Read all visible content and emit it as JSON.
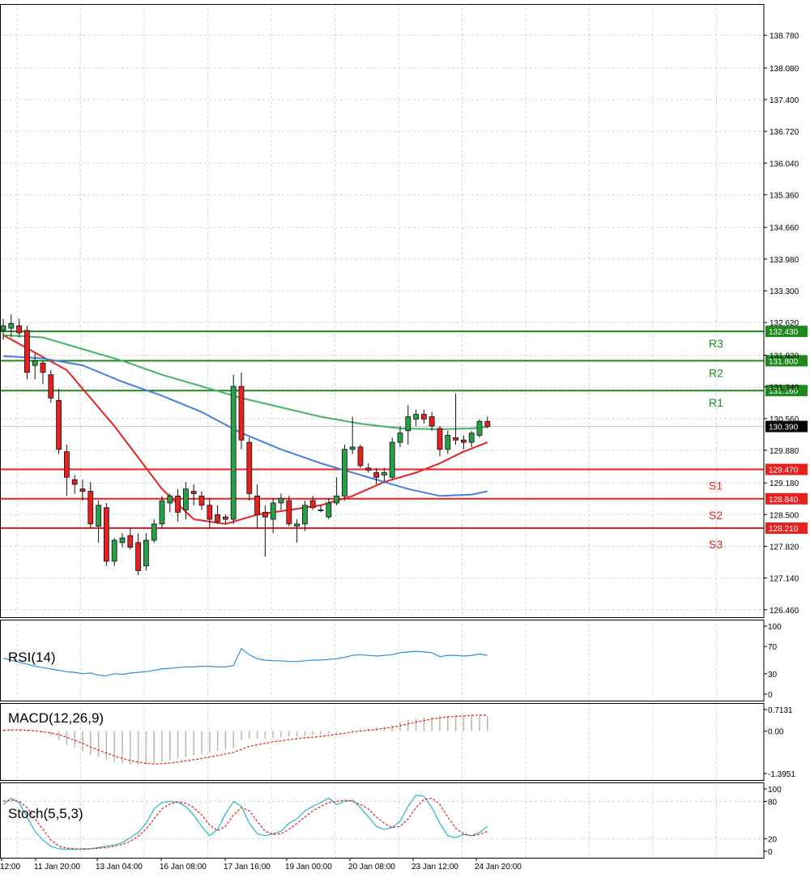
{
  "chart_data": {
    "type": "candlestick",
    "main_panel": {
      "price_axis_ticks": [
        "138.780",
        "138.080",
        "137.400",
        "136.720",
        "136.040",
        "135.360",
        "134.660",
        "133.980",
        "133.300",
        "132.620",
        "131.920",
        "131.240",
        "130.560",
        "129.880",
        "129.180",
        "128.500",
        "127.820",
        "127.140",
        "126.460"
      ],
      "ylim": [
        126.3,
        139.45
      ],
      "current_price": "130.390",
      "candles": [
        {
          "o": 132.45,
          "h": 132.7,
          "l": 132.25,
          "c": 132.55
        },
        {
          "o": 132.5,
          "h": 132.8,
          "l": 132.3,
          "c": 132.6
        },
        {
          "o": 132.55,
          "h": 132.7,
          "l": 132.3,
          "c": 132.4
        },
        {
          "o": 132.45,
          "h": 132.55,
          "l": 131.4,
          "c": 131.55
        },
        {
          "o": 131.7,
          "h": 131.95,
          "l": 131.4,
          "c": 131.8
        },
        {
          "o": 131.75,
          "h": 131.8,
          "l": 131.3,
          "c": 131.55
        },
        {
          "o": 131.5,
          "h": 131.6,
          "l": 130.9,
          "c": 131.0
        },
        {
          "o": 130.95,
          "h": 131.2,
          "l": 129.8,
          "c": 129.9
        },
        {
          "o": 129.85,
          "h": 130.0,
          "l": 128.9,
          "c": 129.3
        },
        {
          "o": 129.25,
          "h": 129.35,
          "l": 128.95,
          "c": 129.15
        },
        {
          "o": 129.05,
          "h": 129.25,
          "l": 128.8,
          "c": 129.0
        },
        {
          "o": 129.0,
          "h": 129.2,
          "l": 128.2,
          "c": 128.3
        },
        {
          "o": 128.25,
          "h": 128.8,
          "l": 127.9,
          "c": 128.7
        },
        {
          "o": 128.65,
          "h": 128.75,
          "l": 127.4,
          "c": 127.5
        },
        {
          "o": 127.5,
          "h": 128.0,
          "l": 127.4,
          "c": 127.95
        },
        {
          "o": 127.9,
          "h": 128.1,
          "l": 127.8,
          "c": 128.0
        },
        {
          "o": 128.05,
          "h": 128.2,
          "l": 127.75,
          "c": 127.8
        },
        {
          "o": 127.9,
          "h": 128.1,
          "l": 127.2,
          "c": 127.3
        },
        {
          "o": 127.4,
          "h": 128.1,
          "l": 127.3,
          "c": 127.95
        },
        {
          "o": 127.95,
          "h": 128.4,
          "l": 127.9,
          "c": 128.3
        },
        {
          "o": 128.3,
          "h": 128.9,
          "l": 128.2,
          "c": 128.8
        },
        {
          "o": 128.75,
          "h": 128.95,
          "l": 128.55,
          "c": 128.9
        },
        {
          "o": 128.9,
          "h": 129.05,
          "l": 128.35,
          "c": 128.55
        },
        {
          "o": 128.6,
          "h": 129.2,
          "l": 128.4,
          "c": 129.05
        },
        {
          "o": 129.0,
          "h": 129.15,
          "l": 128.7,
          "c": 128.95
        },
        {
          "o": 128.9,
          "h": 129.0,
          "l": 128.6,
          "c": 128.7
        },
        {
          "o": 128.7,
          "h": 128.85,
          "l": 128.2,
          "c": 128.4
        },
        {
          "o": 128.5,
          "h": 128.7,
          "l": 128.3,
          "c": 128.35
        },
        {
          "o": 128.45,
          "h": 128.5,
          "l": 128.3,
          "c": 128.4
        },
        {
          "o": 128.4,
          "h": 131.5,
          "l": 128.3,
          "c": 131.25
        },
        {
          "o": 131.25,
          "h": 131.55,
          "l": 129.9,
          "c": 130.1
        },
        {
          "o": 130.05,
          "h": 130.15,
          "l": 128.8,
          "c": 128.95
        },
        {
          "o": 128.9,
          "h": 129.15,
          "l": 128.2,
          "c": 128.5
        },
        {
          "o": 128.55,
          "h": 128.7,
          "l": 127.6,
          "c": 128.45
        },
        {
          "o": 128.4,
          "h": 128.85,
          "l": 128.1,
          "c": 128.75
        },
        {
          "o": 128.75,
          "h": 128.95,
          "l": 128.6,
          "c": 128.85
        },
        {
          "o": 128.8,
          "h": 128.9,
          "l": 128.25,
          "c": 128.3
        },
        {
          "o": 128.25,
          "h": 128.4,
          "l": 127.9,
          "c": 128.3
        },
        {
          "o": 128.3,
          "h": 128.8,
          "l": 128.15,
          "c": 128.7
        },
        {
          "o": 128.8,
          "h": 128.9,
          "l": 128.6,
          "c": 128.65
        },
        {
          "o": 128.6,
          "h": 128.7,
          "l": 128.55,
          "c": 128.6
        },
        {
          "o": 128.45,
          "h": 128.85,
          "l": 128.4,
          "c": 128.75
        },
        {
          "o": 128.75,
          "h": 129.3,
          "l": 128.7,
          "c": 128.9
        },
        {
          "o": 128.9,
          "h": 130.0,
          "l": 128.8,
          "c": 129.9
        },
        {
          "o": 129.9,
          "h": 130.6,
          "l": 129.8,
          "c": 129.95
        },
        {
          "o": 129.95,
          "h": 130.0,
          "l": 129.5,
          "c": 129.55
        },
        {
          "o": 129.5,
          "h": 129.6,
          "l": 129.4,
          "c": 129.45
        },
        {
          "o": 129.4,
          "h": 129.5,
          "l": 129.15,
          "c": 129.3
        },
        {
          "o": 129.35,
          "h": 129.5,
          "l": 129.2,
          "c": 129.4
        },
        {
          "o": 129.3,
          "h": 130.15,
          "l": 129.25,
          "c": 130.05
        },
        {
          "o": 130.05,
          "h": 130.4,
          "l": 129.95,
          "c": 130.25
        },
        {
          "o": 130.3,
          "h": 130.85,
          "l": 130.0,
          "c": 130.6
        },
        {
          "o": 130.55,
          "h": 130.75,
          "l": 130.4,
          "c": 130.65
        },
        {
          "o": 130.65,
          "h": 130.75,
          "l": 130.45,
          "c": 130.55
        },
        {
          "o": 130.6,
          "h": 130.7,
          "l": 130.3,
          "c": 130.4
        },
        {
          "o": 130.35,
          "h": 130.4,
          "l": 129.75,
          "c": 129.9
        },
        {
          "o": 129.9,
          "h": 130.3,
          "l": 129.8,
          "c": 130.2
        },
        {
          "o": 130.15,
          "h": 131.1,
          "l": 130.0,
          "c": 130.1
        },
        {
          "o": 130.1,
          "h": 130.2,
          "l": 129.9,
          "c": 130.05
        },
        {
          "o": 130.05,
          "h": 130.3,
          "l": 129.95,
          "c": 130.25
        },
        {
          "o": 130.2,
          "h": 130.55,
          "l": 130.15,
          "c": 130.5
        },
        {
          "o": 130.5,
          "h": 130.6,
          "l": 130.35,
          "c": 130.39
        }
      ],
      "moving_averages": [
        {
          "color": "#e8201e",
          "points": [
            [
              0,
              132.35
            ],
            [
              8,
              131.6
            ],
            [
              14,
              130.4
            ],
            [
              20,
              129.05
            ],
            [
              24,
              128.4
            ],
            [
              28,
              128.3
            ],
            [
              32,
              128.5
            ],
            [
              36,
              128.6
            ],
            [
              40,
              128.7
            ],
            [
              44,
              128.9
            ],
            [
              48,
              129.2
            ],
            [
              52,
              129.4
            ],
            [
              55,
              129.6
            ],
            [
              58,
              129.85
            ],
            [
              61,
              130.05
            ]
          ]
        },
        {
          "color": "#4a7fd9",
          "points": [
            [
              0,
              131.9
            ],
            [
              5,
              131.85
            ],
            [
              10,
              131.7
            ],
            [
              15,
              131.35
            ],
            [
              20,
              131.05
            ],
            [
              25,
              130.7
            ],
            [
              30,
              130.25
            ],
            [
              35,
              129.9
            ],
            [
              40,
              129.6
            ],
            [
              44,
              129.4
            ],
            [
              48,
              129.2
            ],
            [
              51,
              129.05
            ],
            [
              55,
              128.9
            ],
            [
              59,
              128.93
            ],
            [
              61,
              129.0
            ]
          ]
        },
        {
          "color": "#44b36a",
          "points": [
            [
              0,
              132.35
            ],
            [
              5,
              132.3
            ],
            [
              10,
              132.05
            ],
            [
              15,
              131.8
            ],
            [
              20,
              131.5
            ],
            [
              25,
              131.25
            ],
            [
              30,
              131.0
            ],
            [
              35,
              130.8
            ],
            [
              40,
              130.6
            ],
            [
              45,
              130.45
            ],
            [
              50,
              130.35
            ],
            [
              55,
              130.33
            ],
            [
              59,
              130.35
            ],
            [
              61,
              130.38
            ]
          ]
        }
      ],
      "levels": [
        {
          "name": "R3",
          "value": "132.430",
          "y": 132.43,
          "color": "#1e8a1e"
        },
        {
          "name": "R2",
          "value": "131.800",
          "y": 131.8,
          "color": "#1e8a1e"
        },
        {
          "name": "R1",
          "value": "131.160",
          "y": 131.16,
          "color": "#1e8a1e"
        },
        {
          "name": "S1",
          "value": "129.470",
          "y": 129.47,
          "color": "#e8201e"
        },
        {
          "name": "S2",
          "value": "128.840",
          "y": 128.84,
          "color": "#e8201e"
        },
        {
          "name": "S3",
          "value": "128.210",
          "y": 128.21,
          "color": "#e8201e"
        }
      ]
    },
    "rsi_panel": {
      "label": "RSI(14)",
      "ticks": [
        "100",
        "70",
        "30",
        "0"
      ],
      "color": "#2f8fd8",
      "values": [
        53,
        50,
        47,
        44,
        41,
        39,
        37,
        35,
        33,
        32,
        30,
        31,
        28,
        27,
        30,
        29,
        31,
        32,
        33,
        35,
        37,
        38,
        39,
        40,
        40,
        41,
        41,
        40,
        40,
        42,
        67,
        58,
        52,
        50,
        49,
        49,
        48,
        48,
        49,
        50,
        50,
        51,
        52,
        54,
        57,
        58,
        57,
        56,
        57,
        58,
        61,
        62,
        63,
        62,
        61,
        55,
        57,
        57,
        56,
        57,
        59,
        57
      ]
    },
    "macd_panel": {
      "label": "MACD(12,26,9)",
      "ticks": [
        "0.7131",
        "0.00",
        "-1.3951"
      ],
      "histogram_color": "#b7b7b7",
      "signal_color": "#e8201e",
      "histogram": [
        0.05,
        0.06,
        0.04,
        0.03,
        -0.02,
        -0.05,
        -0.15,
        -0.3,
        -0.45,
        -0.55,
        -0.65,
        -0.78,
        -0.85,
        -0.95,
        -1.02,
        -1.05,
        -1.1,
        -1.12,
        -1.1,
        -1.05,
        -1.0,
        -0.95,
        -0.9,
        -0.85,
        -0.8,
        -0.75,
        -0.7,
        -0.65,
        -0.6,
        -0.55,
        -0.3,
        -0.25,
        -0.25,
        -0.25,
        -0.22,
        -0.2,
        -0.18,
        -0.18,
        -0.15,
        -0.12,
        -0.1,
        -0.08,
        -0.05,
        0.0,
        0.05,
        0.08,
        0.1,
        0.12,
        0.15,
        0.2,
        0.3,
        0.38,
        0.42,
        0.46,
        0.48,
        0.5,
        0.5,
        0.52,
        0.53,
        0.55,
        0.52,
        0.5
      ],
      "signal": [
        0.03,
        0.04,
        0.04,
        0.03,
        0.01,
        -0.02,
        -0.06,
        -0.12,
        -0.2,
        -0.3,
        -0.4,
        -0.52,
        -0.62,
        -0.72,
        -0.82,
        -0.9,
        -0.97,
        -1.02,
        -1.06,
        -1.08,
        -1.07,
        -1.05,
        -1.02,
        -0.98,
        -0.94,
        -0.9,
        -0.85,
        -0.8,
        -0.75,
        -0.7,
        -0.6,
        -0.5,
        -0.45,
        -0.4,
        -0.35,
        -0.32,
        -0.28,
        -0.25,
        -0.22,
        -0.2,
        -0.17,
        -0.14,
        -0.1,
        -0.07,
        -0.03,
        0.0,
        0.03,
        0.06,
        0.09,
        0.13,
        0.18,
        0.24,
        0.3,
        0.35,
        0.4,
        0.44,
        0.47,
        0.49,
        0.5,
        0.52,
        0.53,
        0.52
      ]
    },
    "stoch_panel": {
      "label": "Stoch(5,5,3)",
      "ticks": [
        "100",
        "80",
        "20",
        "0"
      ],
      "main_color": "#20b8c8",
      "signal_color": "#e8201e",
      "main": [
        75,
        85,
        78,
        55,
        32,
        18,
        8,
        4,
        3,
        3,
        4,
        4,
        6,
        8,
        10,
        14,
        22,
        30,
        45,
        68,
        78,
        80,
        79,
        72,
        58,
        40,
        25,
        35,
        60,
        80,
        72,
        45,
        28,
        25,
        28,
        32,
        45,
        52,
        65,
        72,
        78,
        85,
        75,
        80,
        82,
        70,
        55,
        40,
        35,
        38,
        48,
        72,
        90,
        88,
        70,
        45,
        25,
        22,
        27,
        25,
        30,
        40
      ],
      "signal": [
        80,
        82,
        80,
        70,
        52,
        35,
        18,
        8,
        5,
        4,
        3,
        4,
        5,
        6,
        8,
        11,
        16,
        24,
        36,
        52,
        68,
        76,
        79,
        77,
        70,
        58,
        42,
        33,
        40,
        58,
        70,
        65,
        48,
        32,
        27,
        28,
        35,
        45,
        55,
        65,
        72,
        78,
        80,
        82,
        80,
        75,
        68,
        55,
        45,
        38,
        40,
        52,
        70,
        83,
        85,
        75,
        55,
        37,
        28,
        25,
        27,
        32
      ]
    },
    "time_axis_labels": [
      "12:00",
      "11 Jan 20:00",
      "13 Jan 04:00",
      "16 Jan 08:00",
      "17 Jan 16:00",
      "19 Jan 00:00",
      "20 Jan 08:00",
      "23 Jan 12:00",
      "24 Jan 20:00"
    ]
  }
}
